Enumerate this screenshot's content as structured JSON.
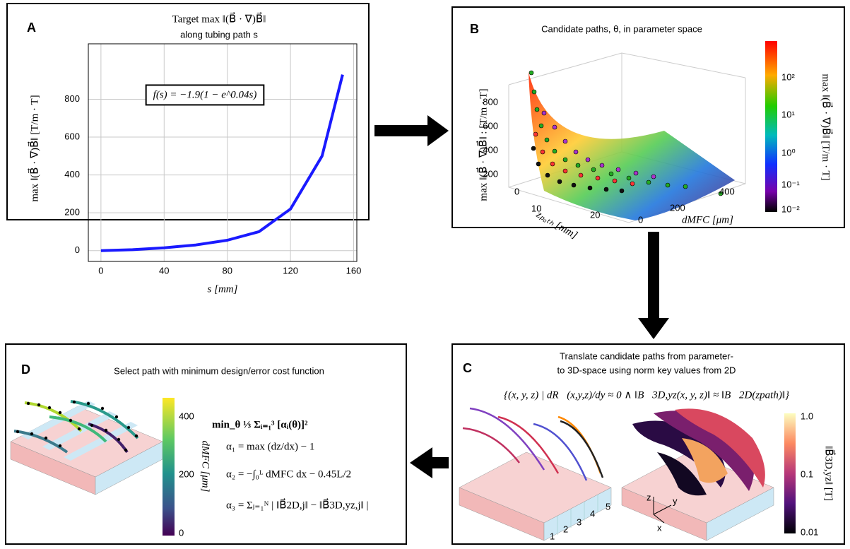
{
  "chart_data": {
    "type": "line",
    "title": "Target max ‖(B⃗ · ∇)B⃗‖",
    "subtitle": "along tubing path s",
    "annotation": "f(s) = −1.9(1 − e^0.04s)",
    "xlabel": "s [mm]",
    "ylabel": "max ‖(B⃗ · ∇)B⃗‖ [T/m · T]",
    "x": [
      0,
      20,
      40,
      60,
      80,
      100,
      120,
      140,
      153
    ],
    "series": [
      {
        "color": "#1a1aff",
        "values": [
          0,
          5,
          15,
          30,
          55,
          100,
          220,
          500,
          930
        ]
      }
    ],
    "xlim": [
      -8,
      162
    ],
    "xticks": [
      0,
      40,
      80,
      120,
      160
    ],
    "ylim": [
      -57,
      1093
    ],
    "yticks": [
      0,
      200,
      400,
      600,
      800
    ],
    "grid": true
  },
  "panels": {
    "a": {
      "label": "A"
    },
    "b": {
      "label": "B",
      "title": "Candidate paths, θ, in parameter space",
      "z_label": "max ‖(B⃗ · ∇)B⃗‖ : [T/m · T]",
      "z_ticks": [
        800,
        600,
        400,
        200
      ],
      "x_label": "zₚₐₜₕ [mm]",
      "x_ticks": [
        0,
        10,
        20
      ],
      "y_label": "dMFC [μm]",
      "y_ticks": [
        0,
        200,
        400
      ],
      "colorbar_label": "max ‖(B⃗ · ∇)B⃗‖ [T/m · T]",
      "colorbar_ticks": [
        "10²",
        "10¹",
        "10⁰",
        "10⁻¹",
        "10⁻²"
      ]
    },
    "c": {
      "label": "C",
      "title_line1": "Translate candidate paths from parameter-",
      "title_line2": "to 3D-space using norm key values from 2D",
      "formula": "{(x, y, z) | dR⃗(x,y,z)/dy ≈ 0 ∧ ‖B⃗3D,yz(x, y, z)‖ ≈ ‖B⃗2D(zpath)‖}",
      "slab_numbers": [
        1,
        2,
        3,
        4,
        5
      ],
      "axes": [
        "z",
        "y",
        "x"
      ],
      "colorbar_ticks": [
        "1.0",
        "0.1",
        "0.01"
      ],
      "colorbar_label": "‖B⃗3D,yz‖ [T]"
    },
    "d": {
      "label": "D",
      "title": "Select path with minimum design/error cost function",
      "objective": "min_θ ⅓ Σᵢ₌₁³ [αᵢ(θ)]²",
      "alpha_1": "α₁ = max (dz/dx) − 1",
      "alpha_2": "α₂ = −∫₀ᴸ dMFC dx − 0.45L/2",
      "alpha_3": "α₃ = Σⱼ₌₁ᴺ | ‖B⃗2D,j‖ − ‖B⃗3D,yz,j‖ |",
      "colorbar_ticks": [
        400,
        200,
        0
      ],
      "colorbar_label": "dMFC [μm]"
    }
  }
}
